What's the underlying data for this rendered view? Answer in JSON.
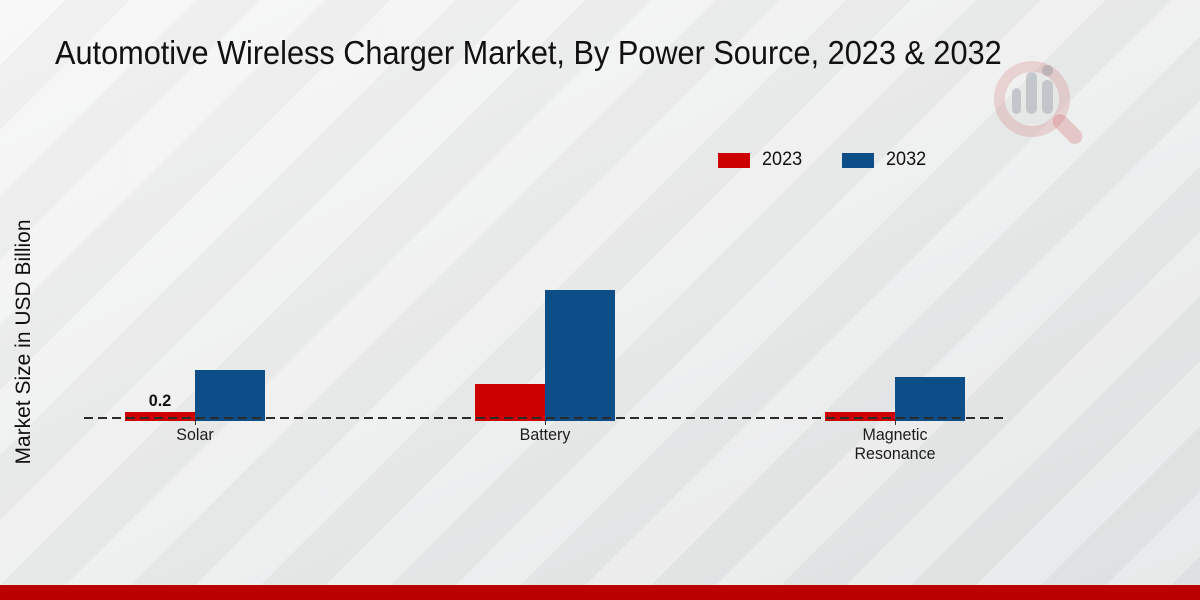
{
  "title": "Automotive Wireless Charger Market, By Power Source, 2023 & 2032",
  "y_axis_label": "Market Size in USD Billion",
  "legend": {
    "items": [
      {
        "label": "2023",
        "color": "#cc0000"
      },
      {
        "label": "2032",
        "color": "#0d4e89"
      }
    ]
  },
  "chart_data": {
    "type": "bar",
    "title": "Automotive Wireless Charger Market, By Power Source, 2023 & 2032",
    "ylabel": "Market Size in USD Billion",
    "xlabel": "",
    "categories": [
      "Solar",
      "Battery",
      "Magnetic Resonance"
    ],
    "series": [
      {
        "name": "2023",
        "color": "#cc0000",
        "values": [
          0.2,
          1.0,
          0.2
        ]
      },
      {
        "name": "2032",
        "color": "#0d4e89",
        "values": [
          1.4,
          3.7,
          1.2
        ]
      }
    ],
    "data_labels": [
      {
        "series": "2023",
        "category": "Solar",
        "text": "0.2"
      }
    ],
    "ylim": [
      0,
      4.2
    ],
    "grid": false,
    "zero_line": {
      "style": "dashed",
      "color": "#2b2b2b"
    },
    "legend_position": "upper-right"
  },
  "branding": {
    "footer_bar_color": "#ba0000",
    "watermark_icon": "magnifier-bar-chart-logo"
  }
}
